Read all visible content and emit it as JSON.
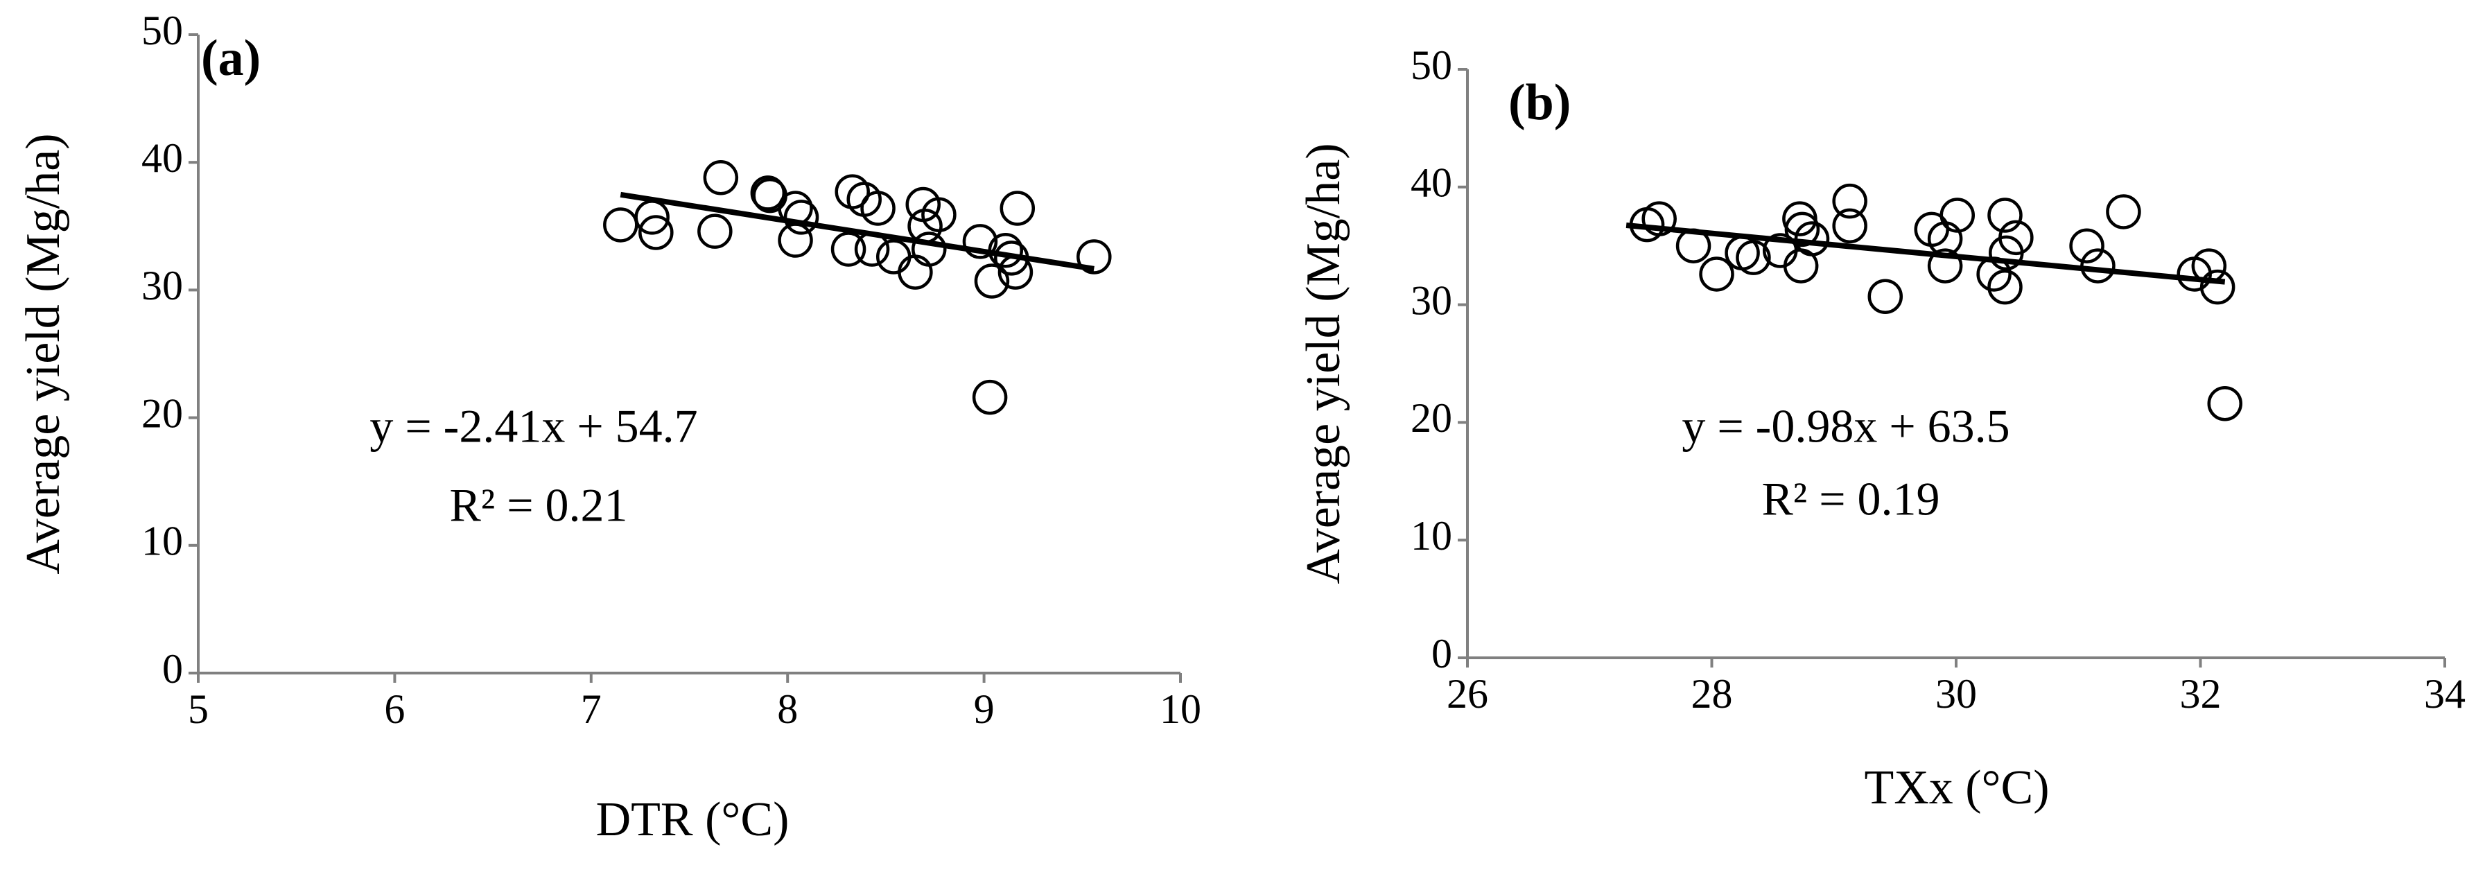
{
  "chart_data": [
    {
      "type": "scatter",
      "panel_label": "(a)",
      "x_label": "DTR (°C)",
      "y_label": "Average yield (Mg/ha)",
      "equation": "y = -2.41x + 54.7",
      "r_squared": "R² = 0.21",
      "x": [
        7.15,
        7.31,
        7.33,
        7.63,
        7.66,
        7.9,
        7.91,
        8.04,
        8.07,
        8.04,
        8.31,
        8.33,
        8.39,
        8.46,
        8.43,
        8.54,
        8.65,
        8.69,
        8.7,
        8.72,
        8.77,
        8.98,
        9.04,
        9.03,
        9.11,
        9.14,
        9.16,
        9.17,
        9.56
      ],
      "values": [
        35.1,
        35.7,
        34.5,
        34.6,
        38.8,
        37.6,
        37.4,
        36.4,
        35.7,
        33.9,
        33.2,
        37.7,
        37.1,
        36.4,
        33.2,
        32.6,
        31.4,
        36.7,
        35.0,
        33.2,
        35.9,
        33.8,
        30.7,
        21.6,
        33.1,
        32.5,
        31.4,
        36.4,
        32.6
      ],
      "trendline": {
        "x": [
          7.15,
          9.56
        ],
        "y": [
          37.47,
          31.66
        ]
      },
      "color": "#000000",
      "xlim": [
        5,
        10
      ],
      "xticks": [
        5,
        6,
        7,
        8,
        9,
        10
      ],
      "ylim": [
        0,
        50
      ],
      "yticks": [
        0,
        10,
        20,
        30,
        40,
        50
      ]
    },
    {
      "type": "scatter",
      "panel_label": "(b)",
      "x_label": "TXx (°C)",
      "y_label": "Average yield (Mg/ha)",
      "equation": "y = -0.98x + 63.5",
      "r_squared": "R² = 0.19",
      "x": [
        27.47,
        27.57,
        27.85,
        28.04,
        28.25,
        28.34,
        28.56,
        28.72,
        28.74,
        28.73,
        28.82,
        29.13,
        29.13,
        29.42,
        29.8,
        29.91,
        29.91,
        30.01,
        30.31,
        30.4,
        30.41,
        30.4,
        30.49,
        31.07,
        31.16,
        31.37,
        31.95,
        32.07,
        32.14,
        32.2
      ],
      "values": [
        36.8,
        37.3,
        35.0,
        32.6,
        34.4,
        34.0,
        34.6,
        37.3,
        36.4,
        33.3,
        35.6,
        38.8,
        36.7,
        30.7,
        36.4,
        35.6,
        33.3,
        37.6,
        32.6,
        37.6,
        34.4,
        31.5,
        35.7,
        35.0,
        33.3,
        37.9,
        32.6,
        33.3,
        31.5,
        21.6
      ],
      "trendline": {
        "x": [
          27.3,
          32.2
        ],
        "y": [
          36.75,
          31.94
        ]
      },
      "color": "#000000",
      "xlim": [
        26,
        34
      ],
      "xticks": [
        26,
        28,
        30,
        32,
        34
      ],
      "ylim": [
        0,
        50
      ],
      "yticks": [
        0,
        10,
        20,
        30,
        40,
        50
      ]
    }
  ]
}
